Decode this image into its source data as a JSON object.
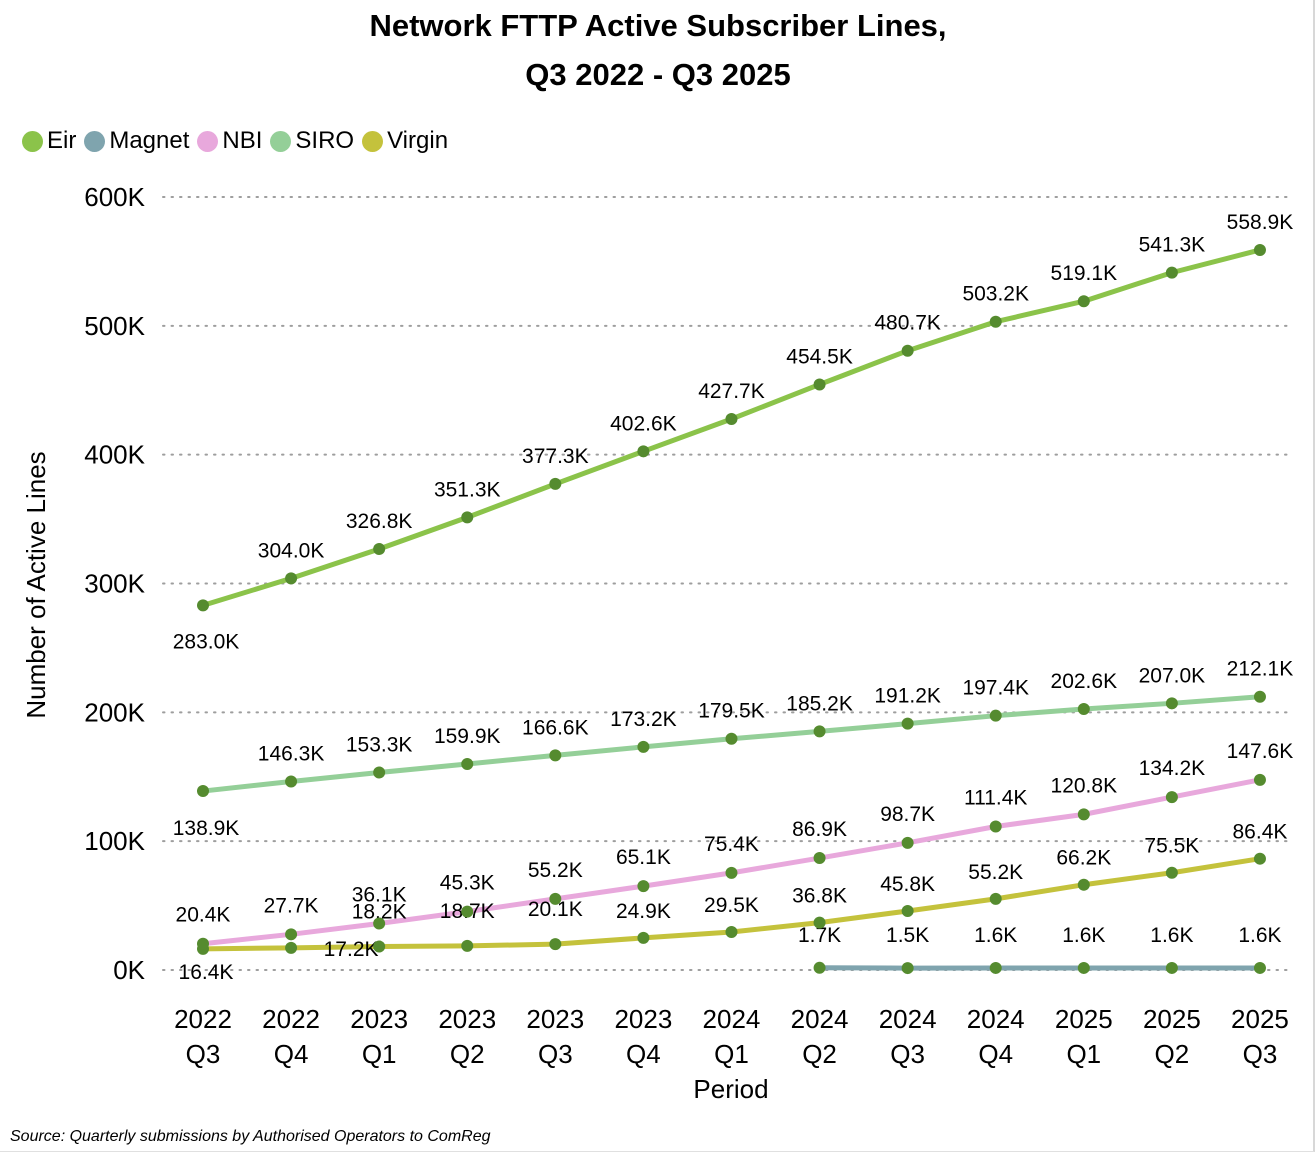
{
  "chart_data": {
    "type": "line",
    "title": "Network FTTP Active Subscriber Lines,",
    "subtitle": "Q3 2022 - Q3 2025",
    "xlabel": "Period",
    "ylabel": "Number of Active Lines",
    "ylim": [
      0,
      600000
    ],
    "yticks": [
      0,
      100000,
      200000,
      300000,
      400000,
      500000,
      600000
    ],
    "ytick_labels": [
      "0K",
      "100K",
      "200K",
      "300K",
      "400K",
      "500K",
      "600K"
    ],
    "grid": "horizontal dotted",
    "legend_position": "top-left",
    "categories": [
      [
        "2022",
        "Q3"
      ],
      [
        "2022",
        "Q4"
      ],
      [
        "2023",
        "Q1"
      ],
      [
        "2023",
        "Q2"
      ],
      [
        "2023",
        "Q3"
      ],
      [
        "2023",
        "Q4"
      ],
      [
        "2024",
        "Q1"
      ],
      [
        "2024",
        "Q2"
      ],
      [
        "2024",
        "Q3"
      ],
      [
        "2024",
        "Q4"
      ],
      [
        "2025",
        "Q1"
      ],
      [
        "2025",
        "Q2"
      ],
      [
        "2025",
        "Q3"
      ]
    ],
    "marker_color": "#558b2f",
    "series": [
      {
        "name": "Eir",
        "color": "#8bc34a",
        "values": [
          283000,
          304000,
          326800,
          351300,
          377300,
          402600,
          427700,
          454500,
          480700,
          503200,
          519100,
          541300,
          558900
        ],
        "labels": [
          "283.0K",
          "304.0K",
          "326.8K",
          "351.3K",
          "377.3K",
          "402.6K",
          "427.7K",
          "454.5K",
          "480.7K",
          "503.2K",
          "519.1K",
          "541.3K",
          "558.9K"
        ]
      },
      {
        "name": "Magnet",
        "color": "#7fa4ae",
        "values": [
          null,
          null,
          null,
          null,
          null,
          null,
          null,
          1700,
          1500,
          1600,
          1600,
          1600,
          1600
        ],
        "labels": [
          null,
          null,
          null,
          null,
          null,
          null,
          null,
          "1.7K",
          "1.5K",
          "1.6K",
          "1.6K",
          "1.6K",
          "1.6K"
        ]
      },
      {
        "name": "NBI",
        "color": "#e8a8dc",
        "values": [
          20400,
          27700,
          36100,
          45300,
          55200,
          65100,
          75400,
          86900,
          98700,
          111400,
          120800,
          134200,
          147600
        ],
        "labels": [
          "20.4K",
          "27.7K",
          "36.1K",
          "45.3K",
          "55.2K",
          "65.1K",
          "75.4K",
          "86.9K",
          "98.7K",
          "111.4K",
          "120.8K",
          "134.2K",
          "147.6K"
        ]
      },
      {
        "name": "SIRO",
        "color": "#94cf98",
        "values": [
          138900,
          146300,
          153300,
          159900,
          166600,
          173200,
          179500,
          185200,
          191200,
          197400,
          202600,
          207000,
          212100
        ],
        "labels": [
          "138.9K",
          "146.3K",
          "153.3K",
          "159.9K",
          "166.6K",
          "173.2K",
          "179.5K",
          "185.2K",
          "191.2K",
          "197.4K",
          "202.6K",
          "207.0K",
          "212.1K"
        ]
      },
      {
        "name": "Virgin",
        "color": "#c4c23c",
        "values": [
          16400,
          17200,
          18200,
          18700,
          20100,
          24900,
          29500,
          36800,
          45800,
          55200,
          66200,
          75500,
          86400
        ],
        "labels": [
          "16.4K",
          "17.2K",
          "18.2K",
          "18.7K",
          "20.1K",
          "24.9K",
          "29.5K",
          "36.8K",
          "45.8K",
          "55.2K",
          "66.2K",
          "75.5K",
          "86.4K"
        ]
      }
    ]
  },
  "source": "Source: Quarterly submissions by Authorised Operators to ComReg"
}
